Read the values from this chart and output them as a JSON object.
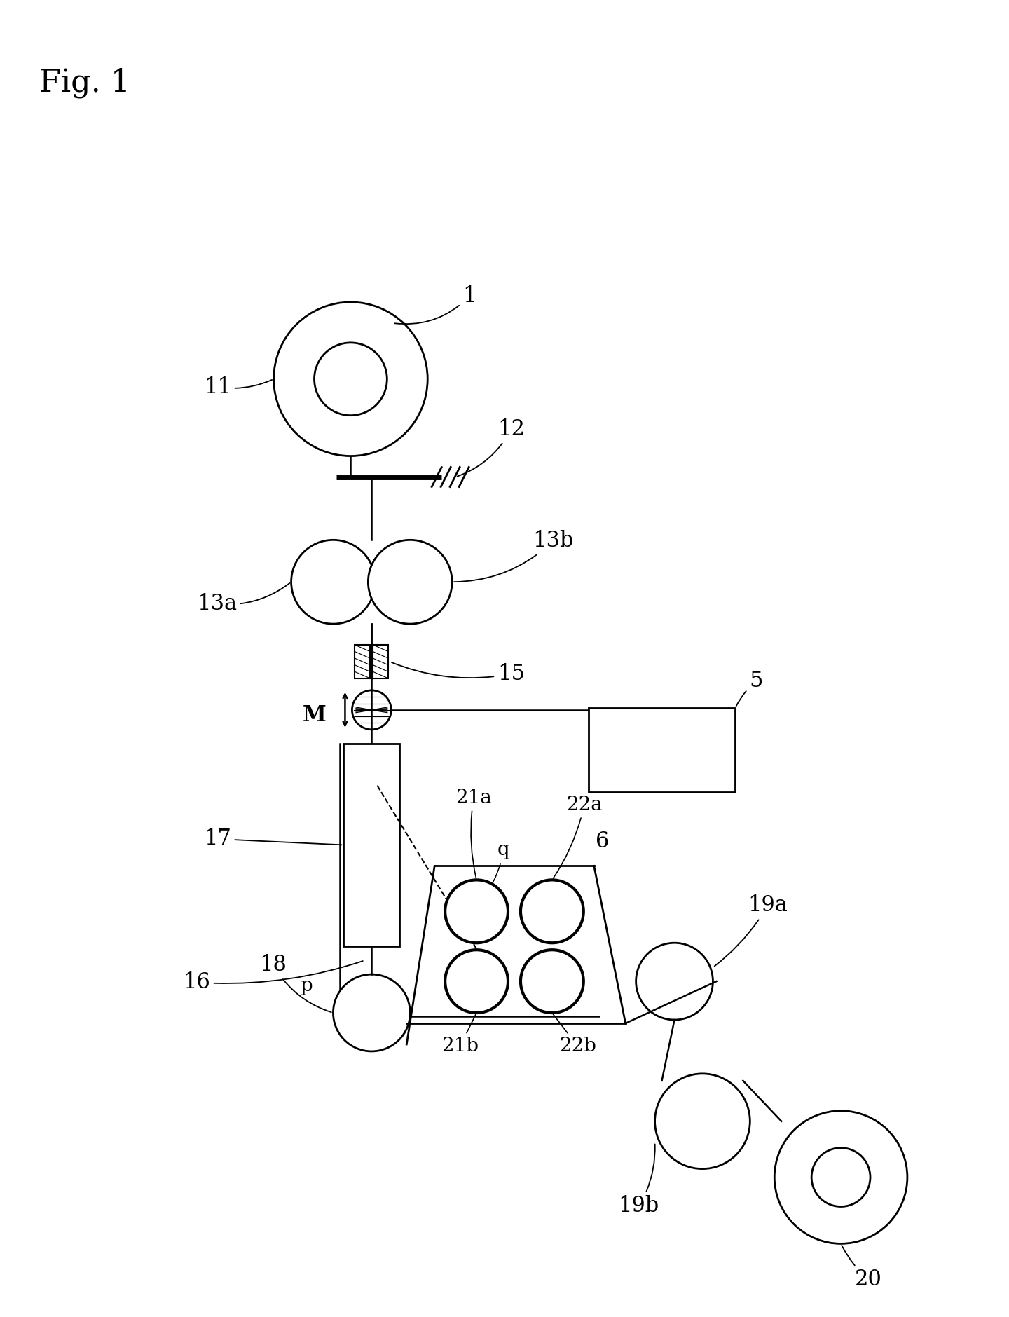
{
  "bg_color": "#ffffff",
  "line_color": "#000000",
  "fig_width": 14.4,
  "fig_height": 18.79,
  "labels": {
    "fig": "Fig. 1",
    "1": "1",
    "5": "5",
    "6": "6",
    "11": "11",
    "12": "12",
    "13a": "13a",
    "13b": "13b",
    "15": "15",
    "16": "16",
    "17": "17",
    "18": "18",
    "19a": "19a",
    "19b": "19b",
    "20": "20",
    "21a": "21a",
    "21b": "21b",
    "22a": "22a",
    "22b": "22b",
    "M": "M",
    "p": "p",
    "q": "q"
  }
}
